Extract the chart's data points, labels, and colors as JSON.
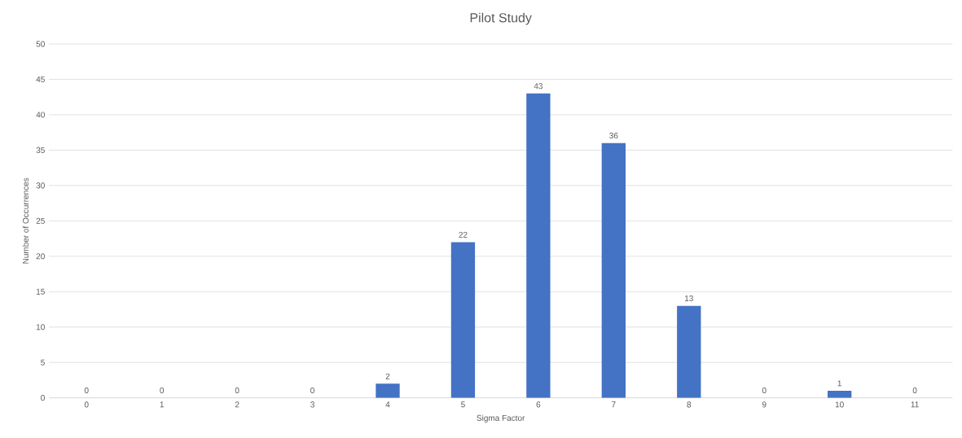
{
  "chart_data": {
    "type": "bar",
    "title": "Pilot Study",
    "xlabel": "Sigma Factor",
    "ylabel": "Number of Occurrences",
    "categories": [
      "0",
      "1",
      "2",
      "3",
      "4",
      "5",
      "6",
      "7",
      "8",
      "9",
      "10",
      "11"
    ],
    "values": [
      0,
      0,
      0,
      0,
      2,
      22,
      43,
      36,
      13,
      0,
      1,
      0
    ],
    "color": "#4472c4",
    "ylim": [
      0,
      50
    ],
    "yticks": [
      0,
      5,
      10,
      15,
      20,
      25,
      30,
      35,
      40,
      45,
      50
    ],
    "grid": "y",
    "data_labels": true
  }
}
